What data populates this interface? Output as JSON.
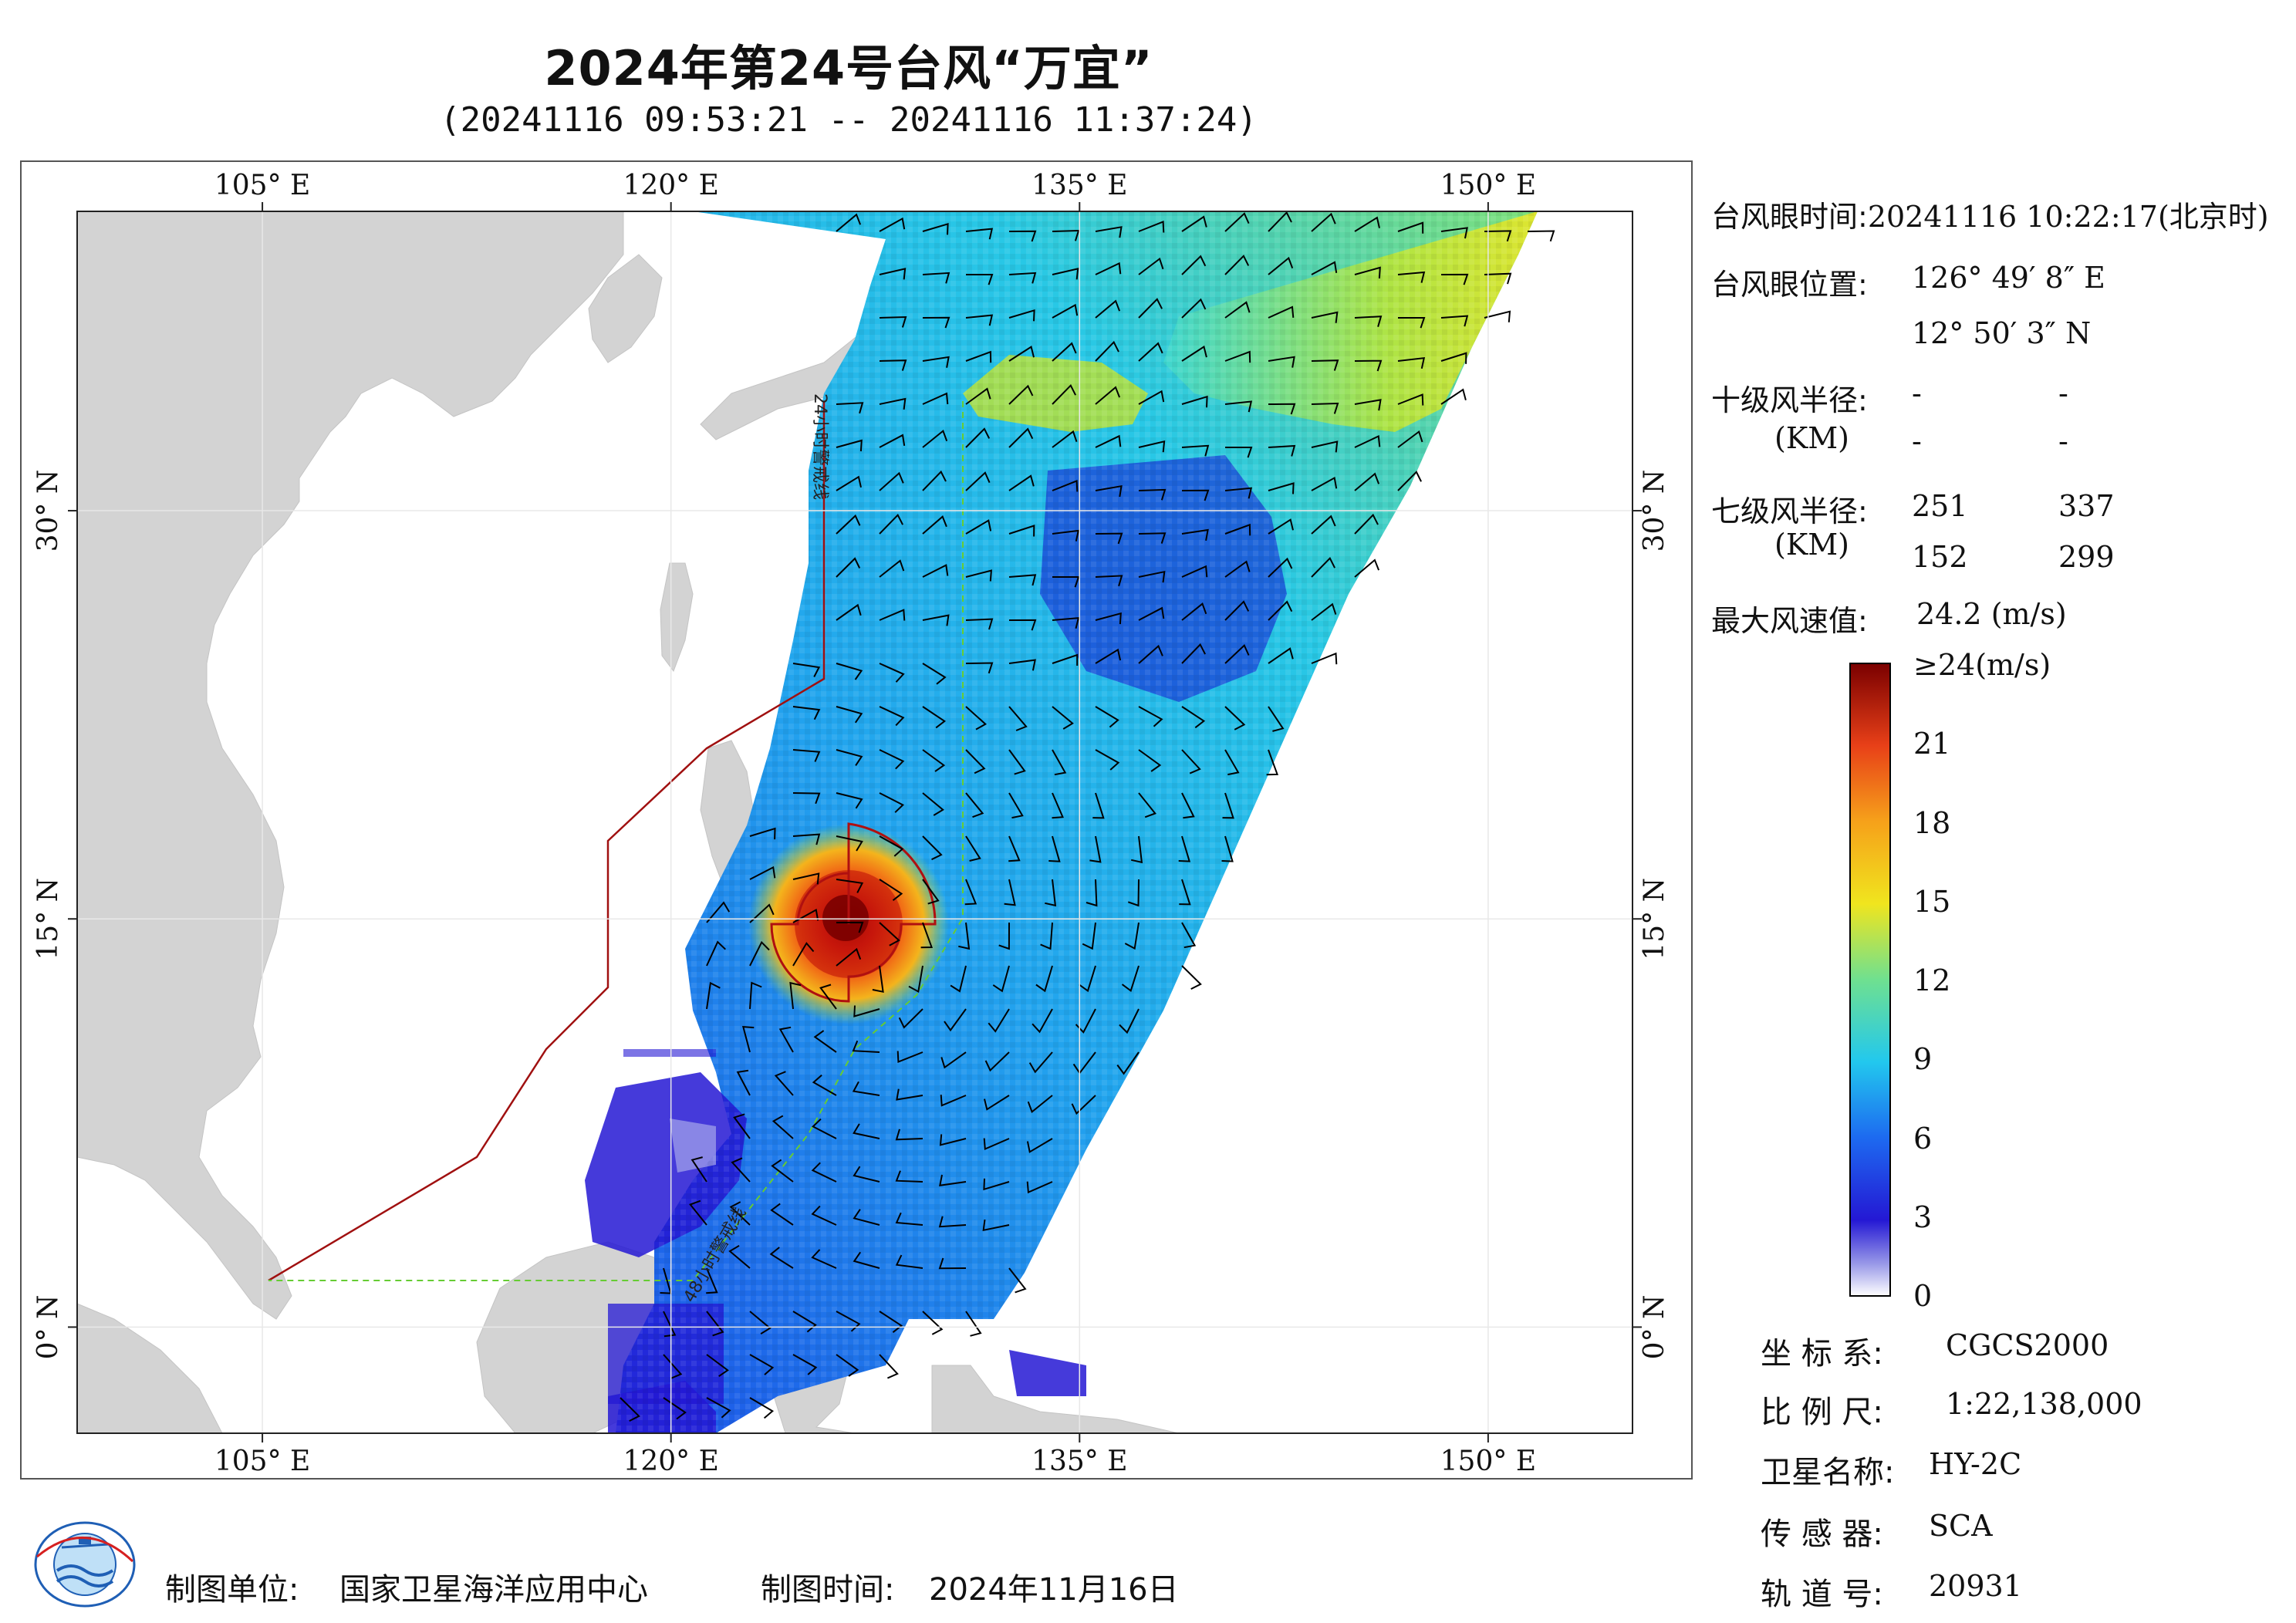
{
  "title": "2024年第24号台风“万宜”",
  "subtitle": "(20241116 09:53:21 -- 20241116 11:37:24)",
  "map": {
    "lon_ticks_top": [
      "105° E",
      "120° E",
      "135° E",
      "150° E"
    ],
    "lon_ticks_bottom": [
      "105° E",
      "120° E",
      "135° E",
      "150° E"
    ],
    "lat_ticks": [
      "30° N",
      "15° N",
      "0° N"
    ],
    "lon_values": [
      105,
      120,
      135,
      150
    ],
    "lat_values": [
      30,
      15,
      0
    ],
    "extent": {
      "lon_min": 98.2,
      "lon_max": 155.3,
      "lat_min": -3.9,
      "lat_max": 41.0
    },
    "warning_line_24h": "24小时警戒线",
    "warning_line_48h": "48小时警戒线",
    "typhoon_eye": {
      "lon": 126.8189,
      "lat": 12.8342
    },
    "colors": {
      "land": "#d3d3d3",
      "sea": "#ffffff",
      "warning_24h": "#a01010",
      "warning_48h": "#66cc33",
      "wind_barb": "#000000"
    }
  },
  "info": {
    "eye_time_label": "台风眼时间:",
    "eye_time_value": "20241116 10:22:17(北京时)",
    "eye_position_label": "台风眼位置:",
    "eye_lon": "126° 49′ 8″ E",
    "eye_lat": "12° 50′ 3″ N",
    "r10_label": "十级风半径:",
    "r10_unit": "(KM)",
    "r10_values": [
      "-",
      "-",
      "-",
      "-"
    ],
    "r7_label": "七级风半径:",
    "r7_unit": "(KM)",
    "r7_values": [
      "251",
      "337",
      "152",
      "299"
    ],
    "max_wind_label": "最大风速值:",
    "max_wind_value": "24.2  (m/s)"
  },
  "legend": {
    "ticks": [
      "≥24(m/s)",
      "21",
      "18",
      "15",
      "12",
      "9",
      "6",
      "3",
      "0"
    ],
    "tick_values": [
      24,
      21,
      18,
      15,
      12,
      9,
      6,
      3,
      0
    ],
    "colors": [
      "#ffffff",
      "#2a1fd8",
      "#1d6af0",
      "#22c8ee",
      "#6fe090",
      "#f0e51e",
      "#f6a11a",
      "#e84018",
      "#a80808",
      "#7a0000"
    ]
  },
  "meta_panel": {
    "coord_label": "坐 标 系:",
    "coord_value": "CGCS2000",
    "scale_label": "比 例 尺:",
    "scale_value": "1:22,138,000",
    "satellite_label": "卫星名称:",
    "satellite_value": "HY-2C",
    "sensor_label": "传 感 器:",
    "sensor_value": "SCA",
    "orbit_label": "轨 道 号:",
    "orbit_value": "20931"
  },
  "footer": {
    "unit_label": "制图单位:",
    "unit_value": "国家卫星海洋应用中心",
    "time_label": "制图时间:",
    "time_value": "2024年11月16日"
  }
}
